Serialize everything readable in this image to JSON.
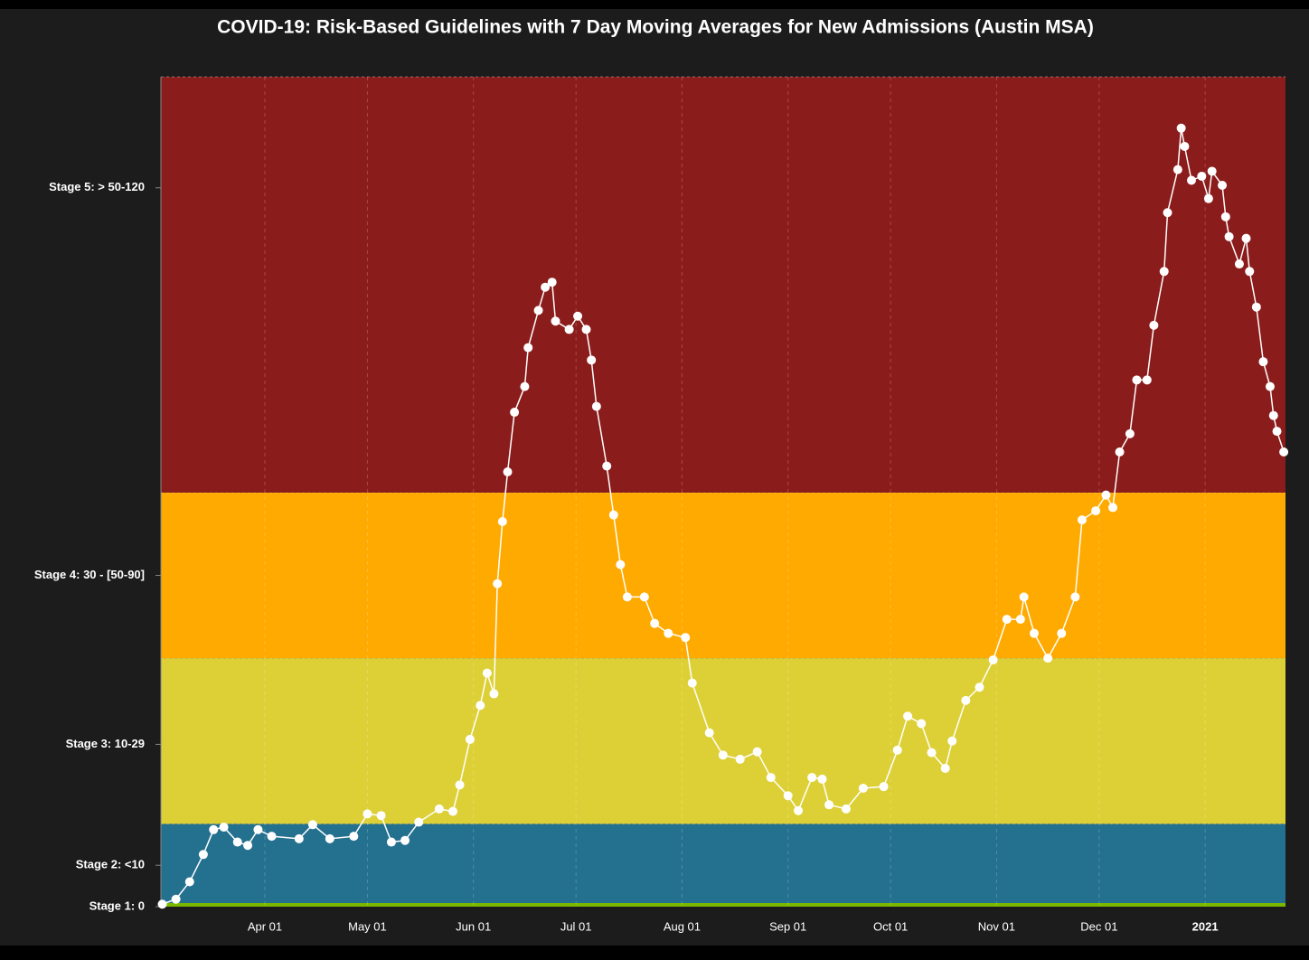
{
  "chart_data": {
    "type": "line",
    "title": "COVID-19: Risk-Based Guidelines with 7 Day Moving Averages for New Admissions (Austin MSA)",
    "x": [
      1,
      5,
      9,
      13,
      16,
      19,
      23,
      26,
      29,
      33,
      41,
      45,
      50,
      57,
      61,
      65,
      68,
      72,
      76,
      82,
      86,
      88,
      91,
      94,
      96,
      98,
      99,
      100.5,
      102,
      104,
      107,
      108,
      111,
      113,
      115,
      116,
      120,
      122.5,
      125,
      126.5,
      128,
      131,
      133,
      135,
      137,
      142,
      145,
      149,
      154,
      156,
      161,
      165,
      170,
      175,
      179,
      184,
      187,
      191,
      194,
      196,
      201,
      206,
      212,
      216,
      219,
      223,
      226,
      230,
      232,
      236,
      240,
      244,
      248,
      252,
      253,
      256,
      260,
      264,
      268,
      270,
      274,
      277,
      279,
      281,
      284,
      286,
      289,
      291,
      294,
      295,
      298,
      299,
      300,
      302,
      305,
      307,
      308,
      311,
      312,
      313,
      316,
      318,
      319,
      321,
      323,
      325,
      326,
      327,
      329
    ],
    "series": [
      {
        "name": "7 Day Moving Average",
        "color": "#ffffff",
        "values": [
          0.3,
          0.9,
          3,
          6.3,
          9.3,
          9.6,
          7.8,
          7.4,
          9.3,
          8.5,
          8.2,
          9.9,
          8.2,
          8.5,
          11.2,
          11,
          7.8,
          8,
          10.2,
          11.8,
          11.5,
          14.7,
          20.2,
          24.3,
          28.2,
          25.7,
          39,
          46.5,
          52.5,
          59.7,
          62.8,
          67.5,
          72,
          74.8,
          75.4,
          70.7,
          69.7,
          71.3,
          69.7,
          66,
          60.4,
          53.2,
          47.3,
          41.3,
          37.4,
          37.4,
          34.2,
          33,
          32.5,
          27,
          21,
          18.3,
          17.8,
          18.7,
          15.6,
          13.4,
          11.6,
          15.6,
          15.4,
          12.3,
          11.8,
          14.3,
          14.5,
          18.9,
          23,
          22.1,
          18.6,
          16.7,
          20,
          24.9,
          26.5,
          29.8,
          34.7,
          34.7,
          37.4,
          33,
          30,
          33,
          37.4,
          46.7,
          47.8,
          49.7,
          48.2,
          54.9,
          57.1,
          63.6,
          63.6,
          70.2,
          76.7,
          83.8,
          89,
          94,
          91.8,
          87.7,
          88.2,
          85.5,
          88.8,
          87.1,
          83.3,
          80.9,
          77.6,
          80.7,
          76.7,
          72.4,
          65.8,
          62.8,
          59.3,
          57.4,
          54.9
        ]
      }
    ],
    "xlim": [
      0.6,
      329.5
    ],
    "ylim": [
      0,
      100.2
    ],
    "xticks": [
      {
        "value": 31,
        "label": "Apr 01"
      },
      {
        "value": 61,
        "label": "May 01"
      },
      {
        "value": 92,
        "label": "Jun 01"
      },
      {
        "value": 122,
        "label": "Jul 01"
      },
      {
        "value": 153,
        "label": "Aug 01"
      },
      {
        "value": 184,
        "label": "Sep 01"
      },
      {
        "value": 214,
        "label": "Oct 01"
      },
      {
        "value": 245,
        "label": "Nov 01"
      },
      {
        "value": 275,
        "label": "Dec 01"
      },
      {
        "value": 306,
        "label": "2021"
      }
    ],
    "yticks": [
      {
        "value": 0,
        "label": "Stage 1: 0"
      },
      {
        "value": 5,
        "label": "Stage 2: <10"
      },
      {
        "value": 19.6,
        "label": "Stage 3: 10-29"
      },
      {
        "value": 40,
        "label": "Stage 4: 30 - [50-90]"
      },
      {
        "value": 86.8,
        "label": "Stage 5: > 50-120"
      }
    ],
    "bands": [
      {
        "from": 0,
        "to": 10,
        "color": "#24708f"
      },
      {
        "from": 10,
        "to": 30,
        "color": "#ddd037"
      },
      {
        "from": 30,
        "to": 50,
        "color": "#ffaa00"
      },
      {
        "from": 50,
        "to": 100.2,
        "color": "#8b1c1c"
      }
    ],
    "baseline_color": "#7ab800",
    "grid": true
  }
}
